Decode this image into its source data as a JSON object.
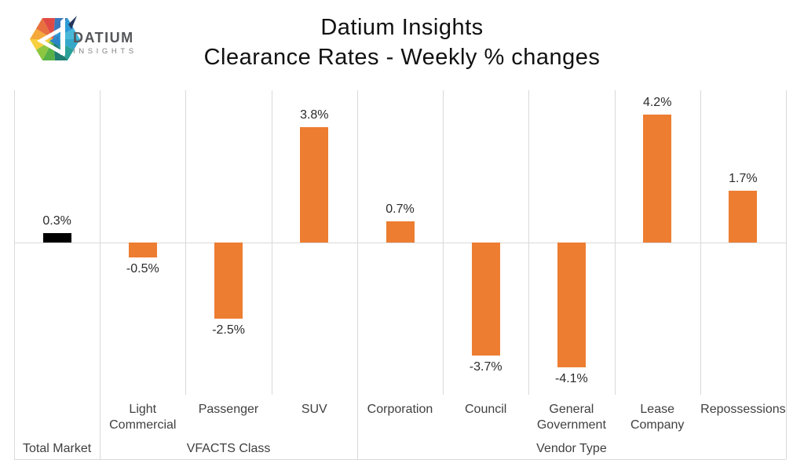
{
  "header": {
    "logo_brand": "DATIUM",
    "logo_sub": "INSIGHTS",
    "title_line1": "Datium Insights",
    "title_line2": "Clearance Rates - Weekly % changes"
  },
  "chart_data": {
    "type": "bar",
    "title": "Datium Insights - Clearance Rates - Weekly % changes",
    "xlabel": "",
    "ylabel": "Weekly % change",
    "ylim": [
      -5,
      5
    ],
    "grid": "vertical category separators + zero baseline, no horizontal value gridlines, no y-axis tick labels",
    "legend": "none",
    "categories": [
      "Total Market",
      "Light Commercial",
      "Passenger",
      "SUV",
      "Corporation",
      "Council",
      "General Government",
      "Lease Company",
      "Repossessions"
    ],
    "values": [
      0.3,
      -0.5,
      -2.5,
      3.8,
      0.7,
      -3.7,
      -4.1,
      4.2,
      1.7
    ],
    "data_labels": [
      "0.3%",
      "-0.5%",
      "-2.5%",
      "3.8%",
      "0.7%",
      "-3.7%",
      "-4.1%",
      "4.2%",
      "1.7%"
    ],
    "groups": [
      {
        "label": "Total Market",
        "span": [
          0,
          0
        ]
      },
      {
        "label": "VFACTS Class",
        "span": [
          1,
          3
        ]
      },
      {
        "label": "Vendor Type",
        "span": [
          4,
          8
        ]
      }
    ],
    "colors": {
      "bar_default": "#ED7D31",
      "bar_total_market": "#000000",
      "bar_colors": [
        "#000000",
        "#ED7D31",
        "#ED7D31",
        "#ED7D31",
        "#ED7D31",
        "#ED7D31",
        "#ED7D31",
        "#ED7D31",
        "#ED7D31"
      ],
      "gridline": "#D9D9D9",
      "axis_text": "#404040",
      "data_label_text": "#2b2b2b"
    }
  }
}
